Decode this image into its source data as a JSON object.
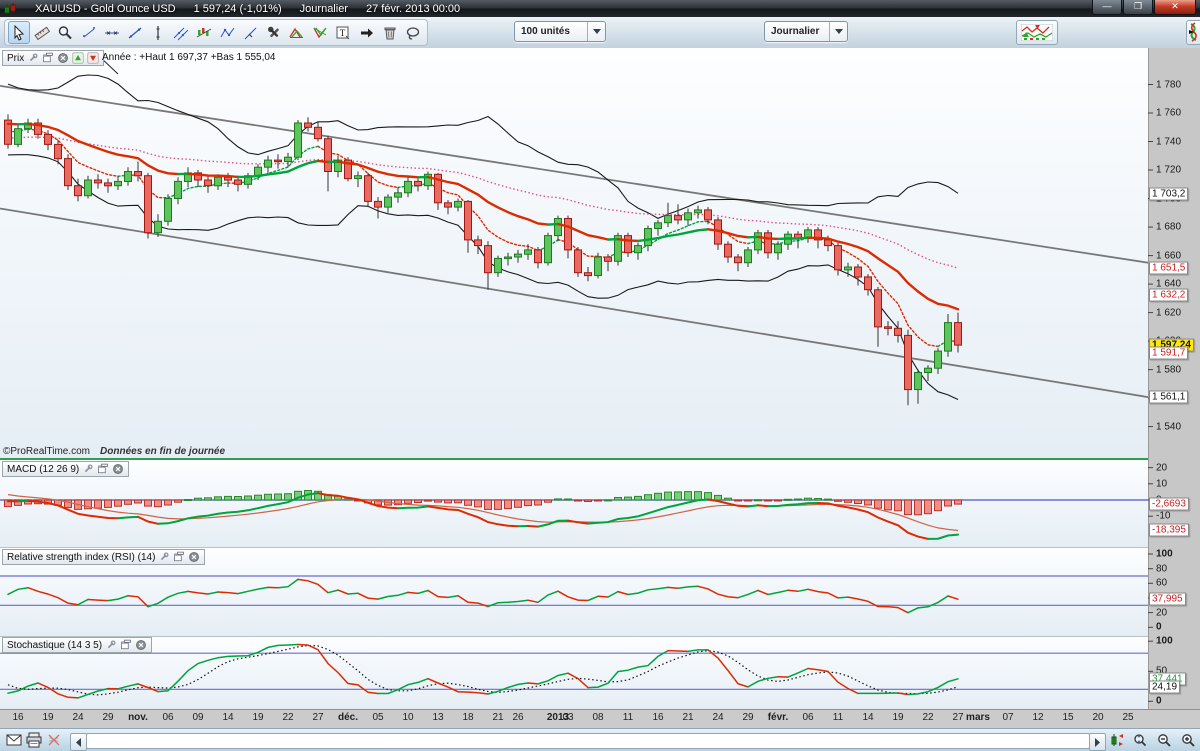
{
  "window": {
    "title_symbol": "XAUUSD - Gold Ounce USD",
    "title_price": "1 597,24 (-1,01%)",
    "title_period": "Journalier",
    "title_date": "27 févr. 2013 00:00",
    "buttons": {
      "minimize": "—",
      "restore": "❐",
      "close": "✕"
    }
  },
  "toolbar": {
    "units_dropdown": "100 unités",
    "period_dropdown": "Journalier",
    "tools": [
      "cursor",
      "ruler",
      "zoom",
      "point-segment",
      "horizontal-line",
      "oblique-line",
      "vertical-line",
      "parallel-lines",
      "regression-tool",
      "zigzag-tool",
      "channel-tool",
      "drawing-tools",
      "pattern-up",
      "pattern-down",
      "text-tool",
      "arrow-tool",
      "delete-tool",
      "lasso-tool"
    ]
  },
  "price_panel": {
    "label": "Prix",
    "annotation": "Année : +Haut 1 697,37 +Bas 1 555,04",
    "copyright": "©ProRealTime.com",
    "data_notice": "Données en fin de journée",
    "axis_ticks": [
      {
        "label": "1 780",
        "value": 1780
      },
      {
        "label": "1 760",
        "value": 1760
      },
      {
        "label": "1 740",
        "value": 1740
      },
      {
        "label": "1 720",
        "value": 1720
      },
      {
        "label": "1 700",
        "value": 1700
      },
      {
        "label": "1 680",
        "value": 1680
      },
      {
        "label": "1 660",
        "value": 1660
      },
      {
        "label": "1 640",
        "value": 1640
      },
      {
        "label": "1 620",
        "value": 1620
      },
      {
        "label": "1 600",
        "value": 1600
      },
      {
        "label": "1 580",
        "value": 1580
      },
      {
        "label": "1 560",
        "value": 1560
      },
      {
        "label": "1 540",
        "value": 1540
      }
    ],
    "boxed_labels": [
      {
        "label": "1 703,2",
        "value": 1703.2,
        "style": "black"
      },
      {
        "label": "1 651,5",
        "value": 1651.5,
        "style": "red"
      },
      {
        "label": "1 632,2",
        "value": 1632.2,
        "style": "red"
      },
      {
        "label": "1 597,24",
        "value": 1597.24,
        "style": "last"
      },
      {
        "label": "1 591,7",
        "value": 1591.7,
        "style": "red"
      },
      {
        "label": "1 561,1",
        "value": 1561.1,
        "style": "black"
      }
    ]
  },
  "macd_panel": {
    "title": "MACD (12 26 9)",
    "axis_ticks": [
      {
        "label": "20",
        "value": 20
      },
      {
        "label": "10",
        "value": 10
      },
      {
        "label": "0",
        "value": 0
      },
      {
        "label": "-10",
        "value": -10
      }
    ],
    "boxed_labels": [
      {
        "label": "-2,6693",
        "value": -2.6693,
        "style": "red"
      },
      {
        "label": "-18,395",
        "value": -18.395,
        "style": "red"
      }
    ]
  },
  "rsi_panel": {
    "title": "Relative strength index (RSI) (14)",
    "axis_ticks": [
      {
        "label": "100",
        "value": 100,
        "bold": true
      },
      {
        "label": "80",
        "value": 80
      },
      {
        "label": "60",
        "value": 60
      },
      {
        "label": "40",
        "value": 40
      },
      {
        "label": "20",
        "value": 20
      },
      {
        "label": "0",
        "value": 0,
        "bold": true
      }
    ],
    "boxed_labels": [
      {
        "label": "37,995",
        "value": 37.995,
        "style": "red"
      }
    ],
    "zone_lines": [
      70,
      30
    ]
  },
  "stoch_panel": {
    "title": "Stochastique (14 3 5)",
    "axis_ticks": [
      {
        "label": "100",
        "value": 100,
        "bold": true
      },
      {
        "label": "50",
        "value": 50
      },
      {
        "label": "0",
        "value": 0,
        "bold": true
      }
    ],
    "boxed_labels": [
      {
        "label": "37,441",
        "value": 37.441,
        "style": "green"
      },
      {
        "label": "24,19",
        "value": 24.19,
        "style": "black"
      }
    ],
    "zone_lines": [
      80,
      20
    ]
  },
  "x_axis": {
    "ticks": [
      {
        "i": 1,
        "label": "16"
      },
      {
        "i": 4,
        "label": "19"
      },
      {
        "i": 7,
        "label": "24"
      },
      {
        "i": 10,
        "label": "29"
      },
      {
        "i": 13,
        "label": "nov.",
        "bold": true
      },
      {
        "i": 16,
        "label": "06"
      },
      {
        "i": 19,
        "label": "09"
      },
      {
        "i": 22,
        "label": "14"
      },
      {
        "i": 25,
        "label": "19"
      },
      {
        "i": 28,
        "label": "22"
      },
      {
        "i": 31,
        "label": "27"
      },
      {
        "i": 34,
        "label": "déc.",
        "bold": true
      },
      {
        "i": 37,
        "label": "05"
      },
      {
        "i": 40,
        "label": "10"
      },
      {
        "i": 43,
        "label": "13"
      },
      {
        "i": 46,
        "label": "18"
      },
      {
        "i": 49,
        "label": "21"
      },
      {
        "i": 51,
        "label": "26"
      },
      {
        "i": 55,
        "label": "2013",
        "bold": true
      },
      {
        "i": 56,
        "label": "03"
      },
      {
        "i": 59,
        "label": "08"
      },
      {
        "i": 62,
        "label": "11"
      },
      {
        "i": 65,
        "label": "16"
      },
      {
        "i": 68,
        "label": "21"
      },
      {
        "i": 71,
        "label": "24"
      },
      {
        "i": 74,
        "label": "29"
      },
      {
        "i": 77,
        "label": "févr.",
        "bold": true
      },
      {
        "i": 80,
        "label": "06"
      },
      {
        "i": 83,
        "label": "11"
      },
      {
        "i": 86,
        "label": "14"
      },
      {
        "i": 89,
        "label": "19"
      },
      {
        "i": 92,
        "label": "22"
      },
      {
        "i": 95,
        "label": "27"
      },
      {
        "i": 97,
        "label": "mars",
        "bold": true
      },
      {
        "i": 100,
        "label": "07"
      },
      {
        "i": 103,
        "label": "12"
      },
      {
        "i": 106,
        "label": "15"
      },
      {
        "i": 109,
        "label": "20"
      },
      {
        "i": 112,
        "label": "25"
      }
    ]
  },
  "status_bar": {
    "icons_left": [
      "mail",
      "print",
      "cut-disabled"
    ],
    "icons_right": [
      "candle-zoom",
      "zoom-vertical",
      "zoom-out",
      "zoom-in"
    ]
  },
  "colors": {
    "candle_up_fill": "#5ec45e",
    "candle_up_stroke": "#1c7a1c",
    "candle_down_fill": "#e86a62",
    "candle_down_stroke": "#a01810",
    "wick": "#333333",
    "ma_up": "#00a33c",
    "ma_down": "#dd2b00",
    "ema_long_dotted": "#e0508c",
    "bollinger": "#1a1a1a",
    "channel": "#787878",
    "zero_line": "#6b6bd6",
    "hist_up_fill": "#79cf79",
    "hist_up_stroke": "#2a8a2a",
    "hist_down_fill": "#ef8e88",
    "hist_down_stroke": "#bb3328",
    "signal_line": "#cc6644",
    "stoch_d": "#111111",
    "last_price_bg": "#ffe713"
  },
  "chart_data": {
    "type": "candlestick",
    "symbol": "XAUUSD",
    "timeframe": "Journalier",
    "price_axis_range": [
      1540,
      1780
    ],
    "indicators": {
      "bollinger": [
        20,
        2
      ],
      "ema_thick": 20,
      "ema_fast_dotted": 7,
      "ema_long_dotted": 50,
      "macd": [
        12,
        26,
        9
      ],
      "rsi": 14,
      "stoch": [
        14,
        3,
        5
      ]
    },
    "channel_lines": {
      "upper": [
        [
          0,
          1779
        ],
        [
          1148,
          1655.0
        ]
      ],
      "lower": [
        [
          0,
          1693
        ],
        [
          1148,
          1560.7
        ]
      ]
    },
    "seed_closes": [
      1690,
      1705,
      1722,
      1738,
      1752,
      1762,
      1771,
      1777,
      1780,
      1776,
      1768,
      1758,
      1748,
      1741,
      1737,
      1744,
      1754,
      1763,
      1771,
      1776,
      1779,
      1774,
      1766,
      1757,
      1749,
      1743,
      1739,
      1745,
      1753,
      1761,
      1768,
      1773,
      1776,
      1771,
      1763,
      1755,
      1749,
      1745,
      1743,
      1741
    ],
    "candles": [
      [
        1755,
        1759,
        1735,
        1738
      ],
      [
        1738,
        1752,
        1736,
        1749
      ],
      [
        1749,
        1756,
        1746,
        1753
      ],
      [
        1753,
        1756,
        1742,
        1745
      ],
      [
        1745,
        1748,
        1734,
        1738
      ],
      [
        1738,
        1741,
        1724,
        1728
      ],
      [
        1728,
        1731,
        1706,
        1709
      ],
      [
        1709,
        1714,
        1698,
        1702
      ],
      [
        1702,
        1716,
        1700,
        1713
      ],
      [
        1713,
        1717,
        1707,
        1711
      ],
      [
        1711,
        1714,
        1704,
        1709
      ],
      [
        1709,
        1716,
        1706,
        1712
      ],
      [
        1712,
        1722,
        1709,
        1719
      ],
      [
        1719,
        1726,
        1712,
        1716
      ],
      [
        1716,
        1718,
        1672,
        1676
      ],
      [
        1676,
        1689,
        1673,
        1684
      ],
      [
        1684,
        1703,
        1681,
        1700
      ],
      [
        1700,
        1715,
        1696,
        1712
      ],
      [
        1712,
        1722,
        1708,
        1718
      ],
      [
        1718,
        1720,
        1708,
        1713
      ],
      [
        1713,
        1716,
        1704,
        1709
      ],
      [
        1709,
        1717,
        1706,
        1715
      ],
      [
        1715,
        1718,
        1708,
        1713
      ],
      [
        1713,
        1716,
        1705,
        1710
      ],
      [
        1710,
        1718,
        1707,
        1716
      ],
      [
        1716,
        1724,
        1713,
        1722
      ],
      [
        1722,
        1730,
        1718,
        1727
      ],
      [
        1727,
        1731,
        1721,
        1726
      ],
      [
        1726,
        1732,
        1722,
        1729
      ],
      [
        1729,
        1755,
        1727,
        1753
      ],
      [
        1753,
        1757,
        1747,
        1750
      ],
      [
        1750,
        1754,
        1740,
        1742
      ],
      [
        1742,
        1744,
        1705,
        1719
      ],
      [
        1719,
        1730,
        1715,
        1727
      ],
      [
        1727,
        1729,
        1712,
        1714
      ],
      [
        1714,
        1719,
        1708,
        1716
      ],
      [
        1716,
        1718,
        1694,
        1698
      ],
      [
        1698,
        1701,
        1686,
        1694
      ],
      [
        1694,
        1703,
        1690,
        1701
      ],
      [
        1701,
        1708,
        1697,
        1704
      ],
      [
        1704,
        1715,
        1701,
        1712
      ],
      [
        1712,
        1714,
        1705,
        1709
      ],
      [
        1709,
        1719,
        1706,
        1717
      ],
      [
        1717,
        1718,
        1692,
        1697
      ],
      [
        1697,
        1699,
        1689,
        1694
      ],
      [
        1694,
        1700,
        1691,
        1698
      ],
      [
        1698,
        1699,
        1662,
        1671
      ],
      [
        1671,
        1674,
        1661,
        1667
      ],
      [
        1667,
        1670,
        1636,
        1648
      ],
      [
        1648,
        1660,
        1645,
        1658
      ],
      [
        1658,
        1662,
        1653,
        1659
      ],
      [
        1659,
        1664,
        1655,
        1661
      ],
      [
        1661,
        1668,
        1657,
        1664
      ],
      [
        1664,
        1666,
        1651,
        1655
      ],
      [
        1655,
        1676,
        1653,
        1674
      ],
      [
        1674,
        1688,
        1670,
        1686
      ],
      [
        1686,
        1688,
        1658,
        1664
      ],
      [
        1664,
        1666,
        1645,
        1648
      ],
      [
        1648,
        1652,
        1642,
        1646
      ],
      [
        1646,
        1662,
        1644,
        1659
      ],
      [
        1659,
        1661,
        1649,
        1656
      ],
      [
        1656,
        1676,
        1653,
        1674
      ],
      [
        1674,
        1676,
        1659,
        1662
      ],
      [
        1662,
        1669,
        1657,
        1667
      ],
      [
        1667,
        1681,
        1663,
        1679
      ],
      [
        1679,
        1685,
        1674,
        1683
      ],
      [
        1683,
        1697,
        1680,
        1688
      ],
      [
        1688,
        1696,
        1682,
        1685
      ],
      [
        1685,
        1693,
        1681,
        1690
      ],
      [
        1690,
        1695,
        1686,
        1692
      ],
      [
        1692,
        1694,
        1682,
        1685
      ],
      [
        1685,
        1687,
        1664,
        1668
      ],
      [
        1668,
        1670,
        1655,
        1659
      ],
      [
        1659,
        1661,
        1649,
        1655
      ],
      [
        1655,
        1666,
        1652,
        1664
      ],
      [
        1664,
        1678,
        1661,
        1676
      ],
      [
        1676,
        1678,
        1658,
        1662
      ],
      [
        1662,
        1670,
        1657,
        1668
      ],
      [
        1668,
        1677,
        1664,
        1675
      ],
      [
        1675,
        1677,
        1665,
        1672
      ],
      [
        1672,
        1680,
        1669,
        1678
      ],
      [
        1678,
        1680,
        1665,
        1671
      ],
      [
        1671,
        1674,
        1663,
        1667
      ],
      [
        1667,
        1669,
        1646,
        1650
      ],
      [
        1650,
        1655,
        1645,
        1652
      ],
      [
        1652,
        1654,
        1639,
        1645
      ],
      [
        1645,
        1647,
        1632,
        1636
      ],
      [
        1636,
        1638,
        1596,
        1610
      ],
      [
        1610,
        1614,
        1604,
        1609
      ],
      [
        1609,
        1614,
        1599,
        1604
      ],
      [
        1604,
        1608,
        1555,
        1566
      ],
      [
        1566,
        1580,
        1556,
        1578
      ],
      [
        1578,
        1583,
        1572,
        1581
      ],
      [
        1581,
        1595,
        1577,
        1593
      ],
      [
        1593,
        1619,
        1589,
        1613
      ],
      [
        1613,
        1620,
        1592,
        1597.24
      ]
    ]
  }
}
